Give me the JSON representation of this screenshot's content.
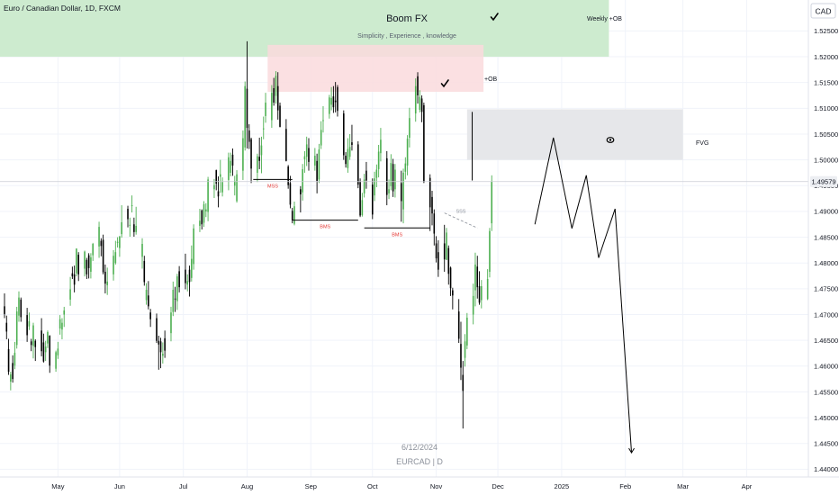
{
  "header": {
    "symbol_line": "Euro / Canadian Dollar, 1D, FXCM"
  },
  "currency_badge": "CAD",
  "price_marker": "1.49579",
  "watermark": {
    "date": "6/12/2024",
    "symbol": "EURCAD | D"
  },
  "zones": {
    "weekly": {
      "title": "Boom FX",
      "subtitle": "Simplicity , Experience , knowledge",
      "label": "Weekly +OB",
      "color": "#cdebcf"
    },
    "daily_ob": {
      "label": "+OB",
      "color": "#fadadd"
    },
    "fvg": {
      "label": "FVG",
      "color": "#e6e7ea"
    }
  },
  "annotations": {
    "mss": "MSS",
    "bms1": "BMS",
    "bms2": "BMS",
    "sss": "SSS"
  },
  "colors": {
    "up": "#4caf50",
    "down": "#000000",
    "grid": "#f0f3fa",
    "axis_text": "#131722",
    "projection": "#000000"
  },
  "chart_data": {
    "type": "candlestick",
    "title": "Euro / Canadian Dollar, 1D, FXCM",
    "x_ticks": [
      "Apr",
      "May",
      "Jun",
      "Jul",
      "Aug",
      "Sep",
      "Oct",
      "Nov",
      "Dec",
      "2025",
      "Feb",
      "Mar",
      "Apr"
    ],
    "y_ticks": [
      "1.52500",
      "1.52000",
      "1.51500",
      "1.51000",
      "1.50500",
      "1.50000",
      "1.49500",
      "1.49000",
      "1.48500",
      "1.48000",
      "1.47500",
      "1.47000",
      "1.46500",
      "1.46000",
      "1.45500",
      "1.45000",
      "1.44500",
      "1.44000"
    ],
    "ylim": [
      1.4385,
      1.531
    ],
    "last_price": 1.49579,
    "zones": [
      {
        "name": "Weekly +OB",
        "start_day": -5,
        "end_day": 294,
        "low": 1.52,
        "high": 1.531
      },
      {
        "name": "+OB",
        "start_day": 128,
        "end_day": 233,
        "low": 1.5132,
        "high": 1.5223
      },
      {
        "name": "FVG",
        "start_day": 225,
        "end_day": 330,
        "low": 1.5,
        "high": 1.5098
      }
    ],
    "projection": [
      [
        258,
        1.4875
      ],
      [
        267,
        1.5043
      ],
      [
        276,
        1.4867
      ],
      [
        283,
        1.497
      ],
      [
        289,
        1.481
      ],
      [
        297,
        1.4905
      ],
      [
        305,
        1.4432
      ]
    ],
    "candles": [
      [
        0,
        1.4716,
        1.4741,
        1.4693,
        1.4701
      ],
      [
        1,
        1.4684,
        1.4698,
        1.4652,
        1.4667
      ],
      [
        2,
        1.4633,
        1.4653,
        1.4583,
        1.4589
      ],
      [
        3,
        1.457,
        1.4589,
        1.4553,
        1.4584
      ],
      [
        4,
        1.4606,
        1.4621,
        1.4568,
        1.4575
      ],
      [
        5,
        1.4601,
        1.4647,
        1.4594,
        1.4626
      ],
      [
        6,
        1.4641,
        1.4715,
        1.4634,
        1.4706
      ],
      [
        7,
        1.4698,
        1.4745,
        1.4686,
        1.4733
      ],
      [
        8,
        1.4729,
        1.4733,
        1.4686,
        1.4695
      ],
      [
        11,
        1.4699,
        1.4713,
        1.4647,
        1.466
      ],
      [
        12,
        1.4677,
        1.4704,
        1.467,
        1.4687
      ],
      [
        13,
        1.4648,
        1.4653,
        1.4629,
        1.4641
      ],
      [
        14,
        1.4639,
        1.4684,
        1.4615,
        1.4679
      ],
      [
        15,
        1.4649,
        1.4652,
        1.461,
        1.4637
      ],
      [
        18,
        1.4669,
        1.4693,
        1.4619,
        1.4629
      ],
      [
        19,
        1.4646,
        1.4663,
        1.4607,
        1.4609
      ],
      [
        20,
        1.4627,
        1.4649,
        1.461,
        1.4638
      ],
      [
        21,
        1.4644,
        1.4669,
        1.4635,
        1.4666
      ],
      [
        22,
        1.4659,
        1.466,
        1.4587,
        1.4601
      ],
      [
        25,
        1.4595,
        1.463,
        1.4589,
        1.4627
      ],
      [
        26,
        1.4621,
        1.4647,
        1.4614,
        1.4634
      ],
      [
        27,
        1.4673,
        1.4699,
        1.4661,
        1.4691
      ],
      [
        28,
        1.4671,
        1.4693,
        1.4652,
        1.4684
      ],
      [
        29,
        1.47,
        1.4715,
        1.4676,
        1.4708
      ],
      [
        32,
        1.4729,
        1.4773,
        1.4717,
        1.4749
      ],
      [
        33,
        1.478,
        1.4793,
        1.4769,
        1.4774
      ],
      [
        34,
        1.4778,
        1.4795,
        1.4743,
        1.4758
      ],
      [
        35,
        1.478,
        1.4828,
        1.4774,
        1.4828
      ],
      [
        36,
        1.4816,
        1.4821,
        1.4765,
        1.4778
      ],
      [
        39,
        1.4789,
        1.4824,
        1.4774,
        1.4822
      ],
      [
        40,
        1.4806,
        1.481,
        1.4769,
        1.4778
      ],
      [
        41,
        1.4815,
        1.4819,
        1.477,
        1.479
      ],
      [
        42,
        1.4783,
        1.4819,
        1.477,
        1.4811
      ],
      [
        43,
        1.4815,
        1.4839,
        1.4804,
        1.4837
      ],
      [
        46,
        1.4832,
        1.488,
        1.481,
        1.487
      ],
      [
        47,
        1.4843,
        1.4848,
        1.4813,
        1.4833
      ],
      [
        48,
        1.4845,
        1.4855,
        1.4778,
        1.4782
      ],
      [
        49,
        1.4783,
        1.4797,
        1.4741,
        1.476
      ],
      [
        50,
        1.4757,
        1.4791,
        1.4738,
        1.4764
      ],
      [
        53,
        1.4778,
        1.4825,
        1.4766,
        1.4814
      ],
      [
        54,
        1.48,
        1.4843,
        1.4797,
        1.4821
      ],
      [
        55,
        1.4839,
        1.485,
        1.483,
        1.4841
      ],
      [
        56,
        1.4829,
        1.4852,
        1.4812,
        1.4852
      ],
      [
        57,
        1.4856,
        1.4912,
        1.4849,
        1.4879
      ],
      [
        60,
        1.4905,
        1.4911,
        1.4869,
        1.4885
      ],
      [
        61,
        1.4873,
        1.4888,
        1.4851,
        1.4874
      ],
      [
        62,
        1.4912,
        1.4931,
        1.4898,
        1.4912
      ],
      [
        63,
        1.4875,
        1.4888,
        1.4851,
        1.486
      ],
      [
        64,
        1.486,
        1.4909,
        1.4855,
        1.4872
      ],
      [
        67,
        1.4812,
        1.4848,
        1.4789,
        1.4837
      ],
      [
        68,
        1.4804,
        1.4814,
        1.4756,
        1.4763
      ],
      [
        69,
        1.4728,
        1.4761,
        1.4719,
        1.4748
      ],
      [
        70,
        1.4737,
        1.4765,
        1.471,
        1.4716
      ],
      [
        71,
        1.4704,
        1.4711,
        1.4676,
        1.4691
      ],
      [
        74,
        1.4693,
        1.4702,
        1.4645,
        1.4649
      ],
      [
        75,
        1.4649,
        1.4659,
        1.4593,
        1.4642
      ],
      [
        76,
        1.4648,
        1.4655,
        1.4596,
        1.4627
      ],
      [
        77,
        1.462,
        1.4646,
        1.4605,
        1.4624
      ],
      [
        78,
        1.4654,
        1.4669,
        1.4616,
        1.463
      ],
      [
        81,
        1.4664,
        1.4715,
        1.4648,
        1.4704
      ],
      [
        82,
        1.4705,
        1.4764,
        1.4697,
        1.4748
      ],
      [
        83,
        1.4731,
        1.4754,
        1.4705,
        1.473
      ],
      [
        84,
        1.4726,
        1.4779,
        1.4709,
        1.4774
      ],
      [
        85,
        1.4784,
        1.4794,
        1.4743,
        1.4753
      ],
      [
        88,
        1.4787,
        1.4818,
        1.4749,
        1.4761
      ],
      [
        89,
        1.4758,
        1.4778,
        1.4745,
        1.4765
      ],
      [
        90,
        1.4787,
        1.4795,
        1.4735,
        1.4763
      ],
      [
        91,
        1.4771,
        1.4834,
        1.4764,
        1.4808
      ],
      [
        92,
        1.4798,
        1.4875,
        1.4787,
        1.4867
      ],
      [
        95,
        1.4872,
        1.4905,
        1.486,
        1.4882
      ],
      [
        96,
        1.4902,
        1.4904,
        1.4865,
        1.4875
      ],
      [
        97,
        1.4878,
        1.492,
        1.487,
        1.4914
      ],
      [
        98,
        1.49,
        1.4916,
        1.4889,
        1.4904
      ],
      [
        99,
        1.4899,
        1.4967,
        1.4881,
        1.4962
      ],
      [
        102,
        1.4943,
        1.4963,
        1.4926,
        1.4951
      ],
      [
        103,
        1.498,
        1.4981,
        1.4941,
        1.4954
      ],
      [
        104,
        1.4939,
        1.4968,
        1.4908,
        1.4929
      ],
      [
        105,
        1.4967,
        1.5,
        1.4936,
        1.4972
      ],
      [
        106,
        1.4937,
        1.4966,
        1.4929,
        1.4957
      ],
      [
        109,
        1.4961,
        1.5014,
        1.4941,
        1.5005
      ],
      [
        110,
        1.4975,
        1.5014,
        1.4968,
        1.4998
      ],
      [
        111,
        1.501,
        1.5022,
        1.4969,
        1.4989
      ],
      [
        112,
        1.495,
        1.4969,
        1.4931,
        1.4959
      ],
      [
        113,
        1.492,
        1.498,
        1.4917,
        1.4972
      ],
      [
        116,
        1.4979,
        1.5057,
        1.4961,
        1.5042
      ],
      [
        117,
        1.5024,
        1.5152,
        1.5018,
        1.5143
      ],
      [
        118,
        1.5138,
        1.523,
        1.5022,
        1.5062
      ],
      [
        119,
        1.5057,
        1.5069,
        1.5021,
        1.5035
      ],
      [
        120,
        1.504,
        1.5043,
        1.4955,
        1.4983
      ],
      [
        123,
        1.4975,
        1.5012,
        1.4957,
        1.5007
      ],
      [
        124,
        1.5006,
        1.5043,
        1.4982,
        1.4998
      ],
      [
        125,
        1.5009,
        1.5045,
        1.4974,
        1.5028
      ],
      [
        126,
        1.506,
        1.5084,
        1.504,
        1.5061
      ],
      [
        127,
        1.5085,
        1.513,
        1.5072,
        1.5111
      ],
      [
        130,
        1.5077,
        1.5145,
        1.5062,
        1.513
      ],
      [
        131,
        1.5139,
        1.5159,
        1.5105,
        1.5111
      ],
      [
        132,
        1.5124,
        1.5172,
        1.5109,
        1.5163
      ],
      [
        133,
        1.5143,
        1.517,
        1.5078,
        1.5096
      ],
      [
        134,
        1.5105,
        1.5111,
        1.5063,
        1.5064
      ],
      [
        137,
        1.506,
        1.5079,
        1.4997,
        1.4998
      ],
      [
        138,
        1.4987,
        1.499,
        1.4944,
        1.4951
      ],
      [
        139,
        1.4955,
        1.4969,
        1.4906,
        1.4913
      ],
      [
        140,
        1.4901,
        1.4907,
        1.4877,
        1.4883
      ],
      [
        141,
        1.4876,
        1.4919,
        1.4873,
        1.491
      ],
      [
        144,
        1.4943,
        1.4949,
        1.4898,
        1.4933
      ],
      [
        145,
        1.4937,
        1.4992,
        1.4921,
        1.4982
      ],
      [
        146,
        1.5001,
        1.5017,
        1.4975,
        1.5007
      ],
      [
        147,
        1.5006,
        1.5045,
        1.4988,
        1.503
      ],
      [
        148,
        1.5023,
        1.5042,
        1.4979,
        1.4996
      ],
      [
        151,
        1.4989,
        1.5023,
        1.4979,
        1.5008
      ],
      [
        152,
        1.4998,
        1.5012,
        1.4935,
        1.4959
      ],
      [
        153,
        1.4962,
        1.5031,
        1.4955,
        1.502
      ],
      [
        154,
        1.5028,
        1.5075,
        1.5021,
        1.5058
      ],
      [
        155,
        1.5076,
        1.5104,
        1.5053,
        1.5077
      ],
      [
        158,
        1.5089,
        1.5126,
        1.508,
        1.5121
      ],
      [
        159,
        1.5107,
        1.5141,
        1.5096,
        1.512
      ],
      [
        160,
        1.5123,
        1.5143,
        1.5091,
        1.5102
      ],
      [
        161,
        1.5115,
        1.5151,
        1.5092,
        1.5112
      ],
      [
        162,
        1.5141,
        1.5145,
        1.5084,
        1.5095
      ],
      [
        165,
        1.509,
        1.5096,
        1.5,
        1.5009
      ],
      [
        166,
        1.5008,
        1.5015,
        1.4985,
        1.4992
      ],
      [
        167,
        1.4984,
        1.5042,
        1.4975,
        1.5021
      ],
      [
        168,
        1.5006,
        1.505,
        1.5,
        1.5025
      ],
      [
        169,
        1.5034,
        1.5068,
        1.5018,
        1.5029
      ],
      [
        172,
        1.503,
        1.5036,
        1.4945,
        1.4952
      ],
      [
        173,
        1.4957,
        1.4964,
        1.4889,
        1.4892
      ],
      [
        174,
        1.4893,
        1.4936,
        1.489,
        1.4922
      ],
      [
        175,
        1.4935,
        1.4973,
        1.4927,
        1.4962
      ],
      [
        176,
        1.4979,
        1.4996,
        1.4944,
        1.496
      ],
      [
        179,
        1.4952,
        1.4964,
        1.4885,
        1.4894
      ],
      [
        180,
        1.4931,
        1.4977,
        1.492,
        1.4964
      ],
      [
        181,
        1.4965,
        1.4991,
        1.4947,
        1.4981
      ],
      [
        182,
        1.4982,
        1.5029,
        1.4966,
        1.5016
      ],
      [
        183,
        1.5013,
        1.5062,
        1.4997,
        1.5039
      ],
      [
        186,
        1.5003,
        1.5017,
        1.4912,
        1.4932
      ],
      [
        187,
        1.4935,
        1.4962,
        1.4924,
        1.4943
      ],
      [
        188,
        1.4949,
        1.5011,
        1.4941,
        1.4994
      ],
      [
        189,
        1.4992,
        1.5002,
        1.4928,
        1.4939
      ],
      [
        190,
        1.4943,
        1.4992,
        1.4927,
        1.4981
      ],
      [
        193,
        1.4955,
        1.4979,
        1.488,
        1.492
      ],
      [
        194,
        1.4904,
        1.4983,
        1.4877,
        1.4975
      ],
      [
        195,
        1.4977,
        1.5005,
        1.4962,
        1.4993
      ],
      [
        196,
        1.4989,
        1.5048,
        1.497,
        1.5041
      ],
      [
        197,
        1.5043,
        1.5101,
        1.5024,
        1.5081
      ],
      [
        200,
        1.509,
        1.5158,
        1.5074,
        1.5143
      ],
      [
        201,
        1.5162,
        1.517,
        1.5109,
        1.5125
      ],
      [
        202,
        1.5097,
        1.5135,
        1.5092,
        1.5122
      ],
      [
        203,
        1.5119,
        1.5125,
        1.5073,
        1.5093
      ],
      [
        204,
        1.5106,
        1.5111,
        1.4955,
        1.4957
      ],
      [
        207,
        1.4965,
        1.4972,
        1.4862,
        1.4908
      ],
      [
        208,
        1.4928,
        1.494,
        1.4873,
        1.4896
      ],
      [
        209,
        1.4896,
        1.4904,
        1.4834,
        1.4857
      ],
      [
        210,
        1.4838,
        1.4852,
        1.4801,
        1.4809
      ],
      [
        211,
        1.4821,
        1.4844,
        1.4773,
        1.4787
      ],
      [
        214,
        1.4838,
        1.4874,
        1.4783,
        1.4807
      ],
      [
        215,
        1.4806,
        1.4868,
        1.4806,
        1.4859
      ],
      [
        216,
        1.4829,
        1.4834,
        1.4758,
        1.4779
      ],
      [
        217,
        1.4791,
        1.4793,
        1.4736,
        1.4751
      ],
      [
        218,
        1.4747,
        1.4752,
        1.471,
        1.4737
      ],
      [
        221,
        1.4706,
        1.473,
        1.4645,
        1.4653
      ],
      [
        222,
        1.4643,
        1.4686,
        1.4573,
        1.4597
      ],
      [
        223,
        1.4583,
        1.461,
        1.4479,
        1.4552
      ],
      [
        224,
        1.4616,
        1.4662,
        1.4599,
        1.4648
      ],
      [
        225,
        1.464,
        1.4703,
        1.4633,
        1.4694
      ],
      [
        228,
        1.47,
        1.476,
        1.4681,
        1.4736
      ],
      [
        229,
        1.4747,
        1.482,
        1.4716,
        1.4797
      ],
      [
        230,
        1.4793,
        1.4814,
        1.4731,
        1.4753
      ],
      [
        231,
        1.4755,
        1.4784,
        1.4719,
        1.4723
      ],
      [
        232,
        1.4728,
        1.4767,
        1.4712,
        1.4755
      ],
      [
        235,
        1.473,
        1.4788,
        1.4728,
        1.4769
      ],
      [
        236,
        1.4783,
        1.4868,
        1.4772,
        1.4862
      ],
      [
        237,
        1.4877,
        1.497,
        1.4862,
        1.4958
      ]
    ]
  }
}
